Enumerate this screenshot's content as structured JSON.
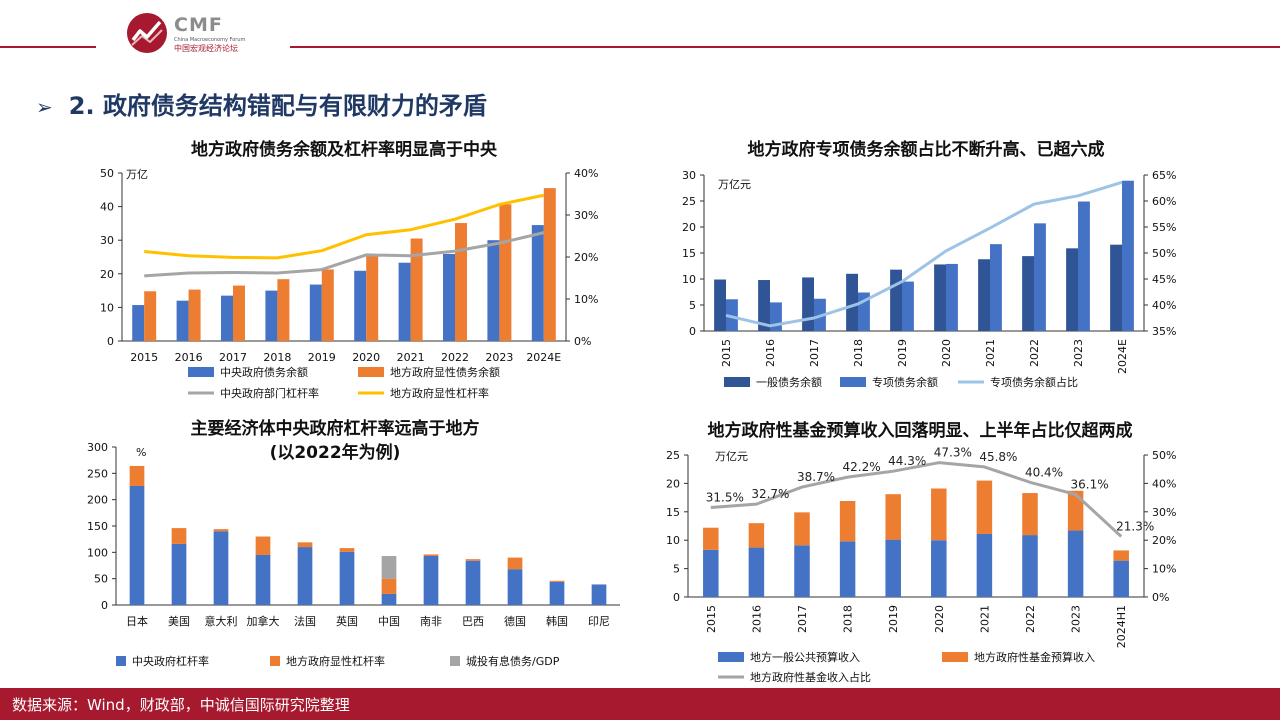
{
  "header": {
    "brand": "CMF",
    "brand_en": "China Macroeconomy Forum",
    "brand_cn": "中国宏观经济论坛",
    "accent_color": "#a6192e"
  },
  "section_title": "2. 政府债务结构错配与有限财力的矛盾",
  "section_arrow_icon": "arrow-right-icon",
  "footer": {
    "source": "数据来源：Wind，财政部，中诚信国际研究院整理"
  },
  "chart_data": [
    {
      "id": "c1",
      "type": "bar",
      "title": "地方政府债务余额及杠杆率明显高于中央",
      "unit_left": "万亿",
      "categories": [
        "2015",
        "2016",
        "2017",
        "2018",
        "2019",
        "2020",
        "2021",
        "2022",
        "2023",
        "2024E"
      ],
      "y_left": {
        "ylim": [
          0,
          50
        ],
        "ticks": [
          "0",
          "10",
          "20",
          "30",
          "40",
          "50"
        ]
      },
      "y_right": {
        "ylim": [
          0,
          40
        ],
        "ticks": [
          "0%",
          "10%",
          "20%",
          "30%",
          "40%"
        ]
      },
      "bar_series": [
        {
          "name": "中央政府债务余额",
          "color": "#4472c4",
          "values": [
            10.7,
            12.0,
            13.5,
            15.0,
            16.8,
            20.9,
            23.3,
            25.9,
            30.0,
            34.5
          ]
        },
        {
          "name": "地方政府显性债务余额",
          "color": "#ed7d31",
          "values": [
            14.8,
            15.3,
            16.5,
            18.4,
            21.3,
            25.7,
            30.5,
            35.1,
            40.7,
            45.5
          ]
        }
      ],
      "line_series": [
        {
          "name": "中央政府部门杠杆率",
          "color": "#a5a5a5",
          "axis": "right",
          "values": [
            15.5,
            16.2,
            16.3,
            16.2,
            17.0,
            20.5,
            20.3,
            21.4,
            23.3,
            25.8
          ]
        },
        {
          "name": "地方政府显性杠杆率",
          "color": "#ffc000",
          "axis": "right",
          "values": [
            21.3,
            20.3,
            19.9,
            19.8,
            21.5,
            25.3,
            26.5,
            29.0,
            32.5,
            34.7
          ]
        }
      ]
    },
    {
      "id": "c2",
      "type": "bar",
      "title": "地方政府专项债务余额占比不断升高、已超六成",
      "unit_left": "万亿元",
      "categories": [
        "2015",
        "2016",
        "2017",
        "2018",
        "2019",
        "2020",
        "2021",
        "2022",
        "2023",
        "2024E"
      ],
      "y_left": {
        "ylim": [
          0,
          30
        ],
        "ticks": [
          "0",
          "5",
          "10",
          "15",
          "20",
          "25",
          "30"
        ]
      },
      "y_right": {
        "ylim": [
          35,
          65
        ],
        "ticks": [
          "35%",
          "40%",
          "45%",
          "50%",
          "55%",
          "60%",
          "65%"
        ]
      },
      "bar_series": [
        {
          "name": "一般债务余额",
          "color": "#2f5597",
          "values": [
            9.9,
            9.8,
            10.3,
            11.0,
            11.8,
            12.8,
            13.8,
            14.4,
            15.9,
            16.6
          ]
        },
        {
          "name": "专项债务余额",
          "color": "#4472c4",
          "values": [
            6.1,
            5.5,
            6.2,
            7.4,
            9.5,
            12.9,
            16.7,
            20.7,
            24.9,
            28.9
          ]
        }
      ],
      "line_series": [
        {
          "name": "专项债务余额占比",
          "color": "#9dc3e6",
          "axis": "right",
          "values": [
            38.0,
            36.0,
            37.5,
            40.2,
            44.5,
            50.4,
            54.8,
            59.4,
            61.0,
            63.6
          ]
        }
      ]
    },
    {
      "id": "c3",
      "type": "stacked-bar",
      "title": "主要经济体中央政府杠杆率远高于地方",
      "subtitle": "(以2022年为例)",
      "unit_left": "%",
      "categories": [
        "日本",
        "美国",
        "意大利",
        "加拿大",
        "法国",
        "英国",
        "中国",
        "南非",
        "巴西",
        "德国",
        "韩国",
        "印尼"
      ],
      "y_left": {
        "ylim": [
          0,
          300
        ],
        "ticks": [
          "0",
          "50",
          "100",
          "150",
          "200",
          "250",
          "300"
        ]
      },
      "stack_series": [
        {
          "name": "中央政府杠杆率",
          "color": "#4472c4",
          "values": [
            226,
            116,
            140,
            95,
            110,
            101,
            21,
            93,
            84,
            68,
            44,
            39
          ]
        },
        {
          "name": "地方政府显性杠杆率",
          "color": "#ed7d31",
          "values": [
            38,
            30,
            4,
            35,
            9,
            7,
            29,
            3,
            3,
            22,
            2,
            0
          ]
        },
        {
          "name": "城投有息债务/GDP",
          "color": "#a5a5a5",
          "values": [
            0,
            0,
            0,
            0,
            0,
            0,
            43,
            0,
            0,
            0,
            0,
            0
          ]
        }
      ]
    },
    {
      "id": "c4",
      "type": "stacked-bar",
      "title": "地方政府性基金预算收入回落明显、上半年占比仅超两成",
      "unit_left": "万亿元",
      "categories": [
        "2015",
        "2016",
        "2017",
        "2018",
        "2019",
        "2020",
        "2021",
        "2022",
        "2023",
        "2024H1"
      ],
      "y_left": {
        "ylim": [
          0,
          25
        ],
        "ticks": [
          "0",
          "5",
          "10",
          "15",
          "20",
          "25"
        ]
      },
      "y_right": {
        "ylim": [
          0,
          50
        ],
        "ticks": [
          "0%",
          "10%",
          "20%",
          "30%",
          "40%",
          "50%"
        ]
      },
      "stack_series": [
        {
          "name": "地方一般公共预算收入",
          "color": "#4472c4",
          "values": [
            8.3,
            8.7,
            9.1,
            9.8,
            10.1,
            10.0,
            11.1,
            10.9,
            11.7,
            6.4
          ]
        },
        {
          "name": "地方政府性基金预算收入",
          "color": "#ed7d31",
          "values": [
            3.9,
            4.3,
            5.8,
            7.1,
            8.0,
            9.1,
            9.4,
            7.4,
            7.0,
            1.8
          ]
        }
      ],
      "line_series": [
        {
          "name": "地方政府性基金收入占比",
          "color": "#a5a5a5",
          "axis": "right",
          "values": [
            31.5,
            32.7,
            38.7,
            42.2,
            44.3,
            47.3,
            45.8,
            40.4,
            36.1,
            21.3
          ],
          "labels": [
            "31.5%",
            "32.7%",
            "38.7%",
            "42.2%",
            "44.3%",
            "47.3%",
            "45.8%",
            "40.4%",
            "36.1%",
            "21.3%"
          ]
        }
      ]
    }
  ]
}
